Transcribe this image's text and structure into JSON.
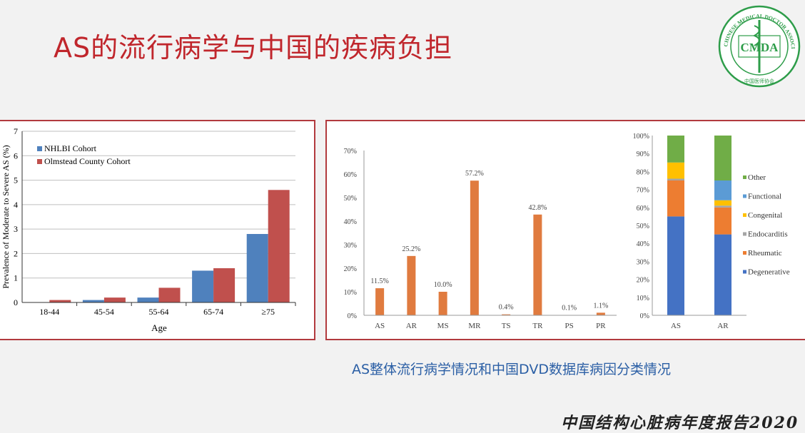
{
  "slide": {
    "title": "AS的流行病学与中国的疾病负担",
    "caption": "AS整体流行病学情况和中国DVD数据库病因分类情况",
    "footer": "中国结构心脏病年度报告2020"
  },
  "logo": {
    "abbr": "CMDA",
    "ring_text": "CHINESE MEDICAL DOCTOR ASSOCIATION",
    "cn_text": "中国医师协会",
    "color": "#2e9d4a"
  },
  "colors": {
    "accent_red": "#c0262c",
    "nhlbi_blue": "#4f81bd",
    "olmstead_red": "#c0504d",
    "orange": "#e07b3f"
  },
  "chart_data": [
    {
      "type": "bar",
      "categories": [
        "18-44",
        "45-54",
        "55-64",
        "65-74",
        "≥75"
      ],
      "series": [
        {
          "name": "NHLBI Cohort",
          "values": [
            0,
            0.1,
            0.2,
            1.3,
            2.8
          ],
          "color": "#4f81bd"
        },
        {
          "name": "Olmstead County Cohort",
          "values": [
            0.1,
            0.2,
            0.6,
            1.4,
            4.6
          ],
          "color": "#c0504d"
        }
      ],
      "xlabel": "Age",
      "ylabel": "Prevalence of Moderate to Severe AS (%)",
      "ylim": [
        0,
        7
      ],
      "yticks": [
        "0",
        "1",
        "2",
        "3",
        "4",
        "5",
        "6",
        "7"
      ],
      "grid": true,
      "legend": "top-left"
    },
    {
      "type": "bar",
      "categories": [
        "AS",
        "AR",
        "MS",
        "MR",
        "TS",
        "TR",
        "PS",
        "PR"
      ],
      "values": [
        11.5,
        25.2,
        10.0,
        57.2,
        0.4,
        42.8,
        0.1,
        1.1
      ],
      "data_labels": [
        "11.5%",
        "25.2%",
        "10.0%",
        "57.2%",
        "0.4%",
        "42.8%",
        "0.1%",
        "1.1%"
      ],
      "ylim": [
        0,
        70
      ],
      "yticks": [
        "0%",
        "10%",
        "20%",
        "30%",
        "40%",
        "50%",
        "60%",
        "70%"
      ],
      "color": "#e07b3f",
      "grid": false
    },
    {
      "type": "bar",
      "stacked": true,
      "categories": [
        "AS",
        "AR"
      ],
      "series": [
        {
          "name": "Degenerative",
          "values": [
            55,
            45
          ],
          "color": "#4472c4"
        },
        {
          "name": "Rheumatic",
          "values": [
            20,
            15
          ],
          "color": "#ed7d31"
        },
        {
          "name": "Endocarditis",
          "values": [
            1,
            1
          ],
          "color": "#a5a5a5"
        },
        {
          "name": "Congenital",
          "values": [
            9,
            3
          ],
          "color": "#ffc000"
        },
        {
          "name": "Functional",
          "values": [
            0,
            11
          ],
          "color": "#5b9bd5"
        },
        {
          "name": "Other",
          "values": [
            15,
            25
          ],
          "color": "#70ad47"
        }
      ],
      "ylim": [
        0,
        100
      ],
      "yticks": [
        "0%",
        "10%",
        "20%",
        "30%",
        "40%",
        "50%",
        "60%",
        "70%",
        "80%",
        "90%",
        "100%"
      ],
      "legend": "right"
    }
  ]
}
